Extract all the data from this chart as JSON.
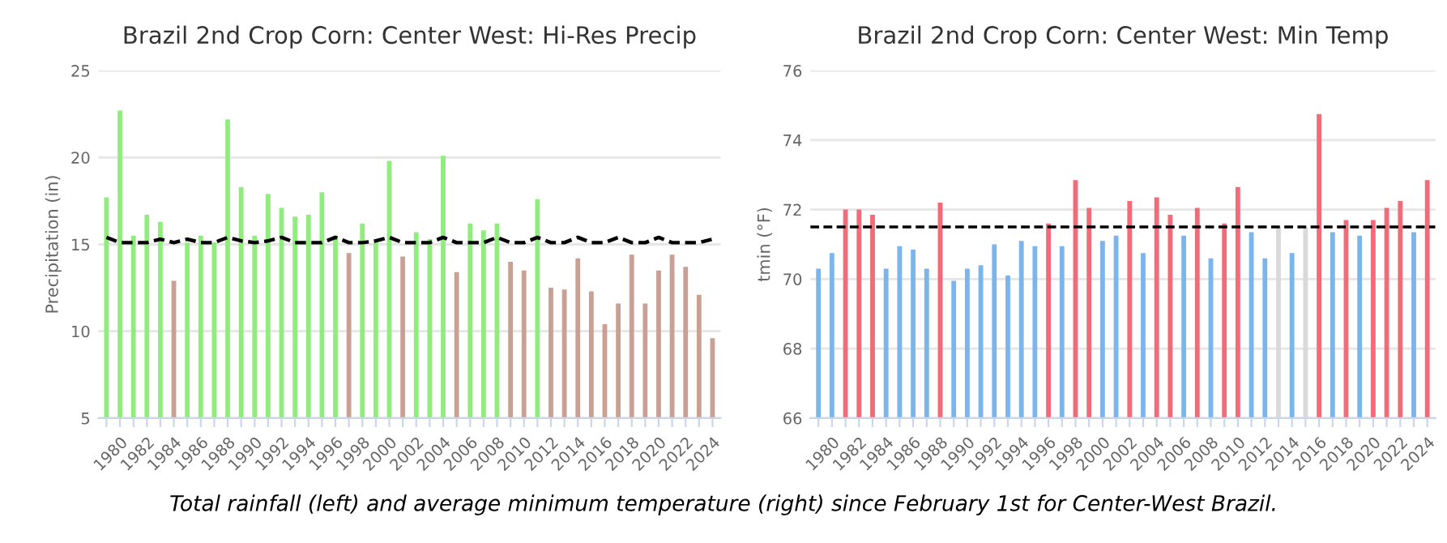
{
  "chart_data": [
    {
      "type": "bar",
      "title": "Brazil 2nd Crop Corn: Center West: Hi-Res Precip",
      "ylabel": "Precipitation (in)",
      "categories": [
        null,
        "1980",
        null,
        "1982",
        null,
        "1984",
        null,
        "1986",
        null,
        "1988",
        null,
        "1990",
        null,
        "1992",
        null,
        "1994",
        null,
        "1996",
        null,
        "1998",
        null,
        "2000",
        null,
        "2002",
        null,
        "2004",
        null,
        "2006",
        null,
        "2008",
        null,
        "2010",
        null,
        "2012",
        null,
        "2014",
        null,
        "2016",
        null,
        "2018",
        null,
        "2020",
        null,
        "2022",
        null,
        "2024"
      ],
      "series": [
        {
          "values": [
            17.7,
            22.7,
            15.5,
            16.7,
            16.3,
            12.9,
            15.1,
            15.5,
            15.1,
            22.2,
            18.3,
            15.5,
            17.9,
            17.1,
            16.6,
            16.7,
            18.0,
            15.5,
            14.5,
            16.2,
            15.3,
            19.8,
            14.3,
            15.7,
            15.3,
            20.1,
            13.4,
            16.2,
            15.8,
            16.2,
            14.0,
            13.5,
            17.6,
            12.5,
            12.4,
            14.2,
            12.3,
            10.4,
            11.6,
            14.4,
            11.6,
            13.5,
            14.4,
            13.7,
            12.1,
            9.6
          ],
          "colors": [
            "#90ed7d",
            "#90ed7d",
            "#90ed7d",
            "#90ed7d",
            "#90ed7d",
            "#c8a094",
            "#90ed7d",
            "#90ed7d",
            "#90ed7d",
            "#90ed7d",
            "#90ed7d",
            "#90ed7d",
            "#90ed7d",
            "#90ed7d",
            "#90ed7d",
            "#90ed7d",
            "#90ed7d",
            "#90ed7d",
            "#c8a094",
            "#90ed7d",
            "#90ed7d",
            "#90ed7d",
            "#c8a094",
            "#90ed7d",
            "#90ed7d",
            "#90ed7d",
            "#c8a094",
            "#90ed7d",
            "#90ed7d",
            "#90ed7d",
            "#c8a094",
            "#c8a094",
            "#90ed7d",
            "#c8a094",
            "#c8a094",
            "#c8a094",
            "#c8a094",
            "#c8a094",
            "#c8a094",
            "#c8a094",
            "#c8a094",
            "#c8a094",
            "#c8a094",
            "#c8a094",
            "#c8a094",
            "#c8a094"
          ]
        },
        {
          "type": "line",
          "color": "#000000",
          "line_style": "dashed",
          "marker": "none",
          "values": [
            15.4,
            15.1,
            15.1,
            15.1,
            15.3,
            15.1,
            15.3,
            15.1,
            15.1,
            15.4,
            15.2,
            15.1,
            15.2,
            15.4,
            15.1,
            15.1,
            15.1,
            15.4,
            15.1,
            15.1,
            15.2,
            15.4,
            15.1,
            15.1,
            15.1,
            15.4,
            15.1,
            15.1,
            15.1,
            15.4,
            15.1,
            15.1,
            15.4,
            15.1,
            15.1,
            15.4,
            15.1,
            15.1,
            15.4,
            15.1,
            15.1,
            15.4,
            15.1,
            15.1,
            15.1,
            15.3
          ]
        }
      ],
      "ylim": [
        5,
        25
      ],
      "yticks": [
        5,
        10,
        15,
        20,
        25
      ],
      "grid": "y",
      "legend": false,
      "annotations": [
        "Total rainfall (left) and average minimum temperature (right) since February 1st for Center-West Brazil."
      ]
    },
    {
      "type": "bar",
      "title": "Brazil 2nd Crop Corn: Center West: Min Temp",
      "ylabel": "tmin (°F)",
      "categories": [
        null,
        "1980",
        null,
        "1982",
        null,
        "1984",
        null,
        "1986",
        null,
        "1988",
        null,
        "1990",
        null,
        "1992",
        null,
        "1994",
        null,
        "1996",
        null,
        "1998",
        null,
        "2000",
        null,
        "2002",
        null,
        "2004",
        null,
        "2006",
        null,
        "2008",
        null,
        "2010",
        null,
        "2012",
        null,
        "2014",
        null,
        "2016",
        null,
        "2018",
        null,
        "2020",
        null,
        "2022",
        null,
        "2024"
      ],
      "series": [
        {
          "values": [
            70.3,
            70.75,
            72.0,
            72.0,
            71.85,
            70.3,
            70.95,
            70.85,
            70.3,
            72.2,
            69.95,
            70.3,
            70.4,
            71.0,
            70.1,
            71.1,
            70.95,
            71.6,
            70.95,
            72.85,
            72.05,
            71.1,
            71.25,
            72.25,
            70.75,
            72.35,
            71.85,
            71.25,
            72.05,
            70.6,
            71.6,
            72.65,
            71.35,
            70.6,
            71.5,
            70.75,
            71.5,
            74.75,
            71.35,
            71.7,
            71.25,
            71.7,
            72.05,
            72.25,
            71.35,
            72.85
          ],
          "colors": [
            "#7cb5ec",
            "#7cb5ec",
            "#f26b78",
            "#f26b78",
            "#f26b78",
            "#7cb5ec",
            "#7cb5ec",
            "#7cb5ec",
            "#7cb5ec",
            "#f26b78",
            "#7cb5ec",
            "#7cb5ec",
            "#7cb5ec",
            "#7cb5ec",
            "#7cb5ec",
            "#7cb5ec",
            "#7cb5ec",
            "#f26b78",
            "#7cb5ec",
            "#f26b78",
            "#f26b78",
            "#7cb5ec",
            "#7cb5ec",
            "#f26b78",
            "#7cb5ec",
            "#f26b78",
            "#f26b78",
            "#7cb5ec",
            "#f26b78",
            "#7cb5ec",
            "#f26b78",
            "#f26b78",
            "#7cb5ec",
            "#7cb5ec",
            "#d9d9d9",
            "#7cb5ec",
            "#d9d9d9",
            "#f26b78",
            "#7cb5ec",
            "#f26b78",
            "#7cb5ec",
            "#f26b78",
            "#f26b78",
            "#f26b78",
            "#7cb5ec",
            "#f26b78"
          ]
        }
      ],
      "ylim": [
        66,
        76
      ],
      "yticks": [
        66,
        68,
        70,
        72,
        74,
        76
      ],
      "grid": "y",
      "legend": false,
      "ref_lines": [
        {
          "axis": "y",
          "value": 71.5,
          "color": "#000000",
          "line_style": "dashed"
        }
      ]
    }
  ]
}
